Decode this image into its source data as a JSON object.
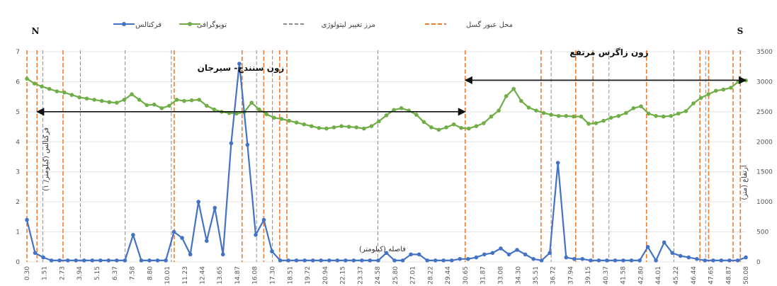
{
  "chart_data": {
    "type": "line",
    "corner_left": "N",
    "corner_right": "S",
    "xlabel": "فاصله (کیلومتر)",
    "ylabel_left": "فرکتالس (کیلومتر/ ۱)",
    "ylabel_right": "ارتفاع (متر)",
    "ylim_left": [
      0,
      7
    ],
    "ylim_right": [
      0,
      3500
    ],
    "yticks_left": [
      "0",
      "1",
      "2",
      "3",
      "4",
      "5",
      "6",
      "7"
    ],
    "yticks_right": [
      "0",
      "500",
      "1000",
      "1500",
      "2000",
      "2500",
      "3000",
      "3500"
    ],
    "xtick_labels": [
      "0.30",
      "1.51",
      "2.73",
      "3.94",
      "5.15",
      "6.37",
      "7.58",
      "8.80",
      "10.01",
      "11.23",
      "12.44",
      "13.65",
      "14.87",
      "16.08",
      "17.30",
      "18.51",
      "19.72",
      "20.94",
      "22.15",
      "23.37",
      "24.58",
      "25.80",
      "27.01",
      "28.22",
      "29.44",
      "30.65",
      "31.87",
      "33.08",
      "34.30",
      "35.51",
      "36.72",
      "37.94",
      "39.15",
      "40.37",
      "41.58",
      "42.80",
      "44.01",
      "45.22",
      "46.44",
      "47.65",
      "48.87",
      "50.08"
    ],
    "legend": [
      {
        "label": "فرکتالس",
        "key": "fractals"
      },
      {
        "label": "توپوگرافی",
        "key": "topography"
      },
      {
        "label": "مرز تغییر لیتولوژی",
        "key": "litho"
      },
      {
        "label": "محل عبور گسل",
        "key": "fault"
      }
    ],
    "zones": [
      {
        "label": "زون سنندج- سیرجان",
        "from_km": 1.0,
        "to_km": 30.65
      },
      {
        "label": "زون زاگرس مرتفع",
        "from_km": 30.65,
        "to_km": 50.08
      }
    ],
    "series": [
      {
        "name": "فرکتالس",
        "key": "fractals",
        "color": "#4472c4",
        "axis": "left",
        "values": [
          1.4,
          0.3,
          0.15,
          0.05,
          0.05,
          0.05,
          0.05,
          0.05,
          0.05,
          0.05,
          0.05,
          0.05,
          0.05,
          0.9,
          0.05,
          0.05,
          0.05,
          0.05,
          1.0,
          0.8,
          0.25,
          2.0,
          0.7,
          1.8,
          0.25,
          3.95,
          6.6,
          3.9,
          0.9,
          1.4,
          0.35,
          0.05,
          0.05,
          0.05,
          0.05,
          0.05,
          0.05,
          0.05,
          0.05,
          0.05,
          0.05,
          0.05,
          0.05,
          0.05,
          0.3,
          0.05,
          0.05,
          0.25,
          0.25,
          0.05,
          0.05,
          0.05,
          0.05,
          0.1,
          0.1,
          0.15,
          0.25,
          0.3,
          0.45,
          0.25,
          0.4,
          0.25,
          0.1,
          0.05,
          0.3,
          3.3,
          0.15,
          0.1,
          0.1,
          0.05,
          0.05,
          0.05,
          0.05,
          0.05,
          0.05,
          0.05,
          0.5,
          0.05,
          0.65,
          0.3,
          0.2,
          0.15,
          0.1,
          0.05,
          0.05,
          0.05,
          0.05,
          0.05,
          0.15
        ]
      },
      {
        "name": "توپوگرافی",
        "key": "topography",
        "color": "#70ad47",
        "axis": "right",
        "values": [
          3050,
          2970,
          2920,
          2880,
          2840,
          2820,
          2780,
          2740,
          2720,
          2700,
          2680,
          2660,
          2650,
          2700,
          2790,
          2700,
          2610,
          2620,
          2560,
          2600,
          2700,
          2680,
          2690,
          2700,
          2600,
          2540,
          2500,
          2480,
          2470,
          2490,
          2650,
          2540,
          2460,
          2400,
          2380,
          2350,
          2320,
          2290,
          2260,
          2230,
          2220,
          2240,
          2260,
          2250,
          2240,
          2220,
          2260,
          2340,
          2440,
          2530,
          2560,
          2520,
          2450,
          2330,
          2240,
          2200,
          2240,
          2290,
          2230,
          2220,
          2260,
          2310,
          2420,
          2520,
          2760,
          2880,
          2680,
          2570,
          2520,
          2480,
          2450,
          2430,
          2430,
          2420,
          2420,
          2300,
          2310,
          2350,
          2400,
          2430,
          2480,
          2560,
          2590,
          2470,
          2430,
          2420,
          2430,
          2470,
          2510,
          2640,
          2730,
          2790,
          2850,
          2870,
          2900,
          3000,
          3020
        ]
      }
    ],
    "fault_lines_km": [
      0.3,
      1.0,
      2.8,
      10.5,
      15.2,
      16.7,
      17.8,
      18.3,
      30.65,
      35.9,
      38.3,
      39.5,
      43.2,
      46.9,
      47.5,
      49.2,
      49.7
    ],
    "litho_lines_km": [
      1.4,
      4.0,
      7.1,
      10.3,
      16.2,
      17.3,
      24.6,
      36.6,
      40.6,
      45.1,
      47.3
    ]
  }
}
